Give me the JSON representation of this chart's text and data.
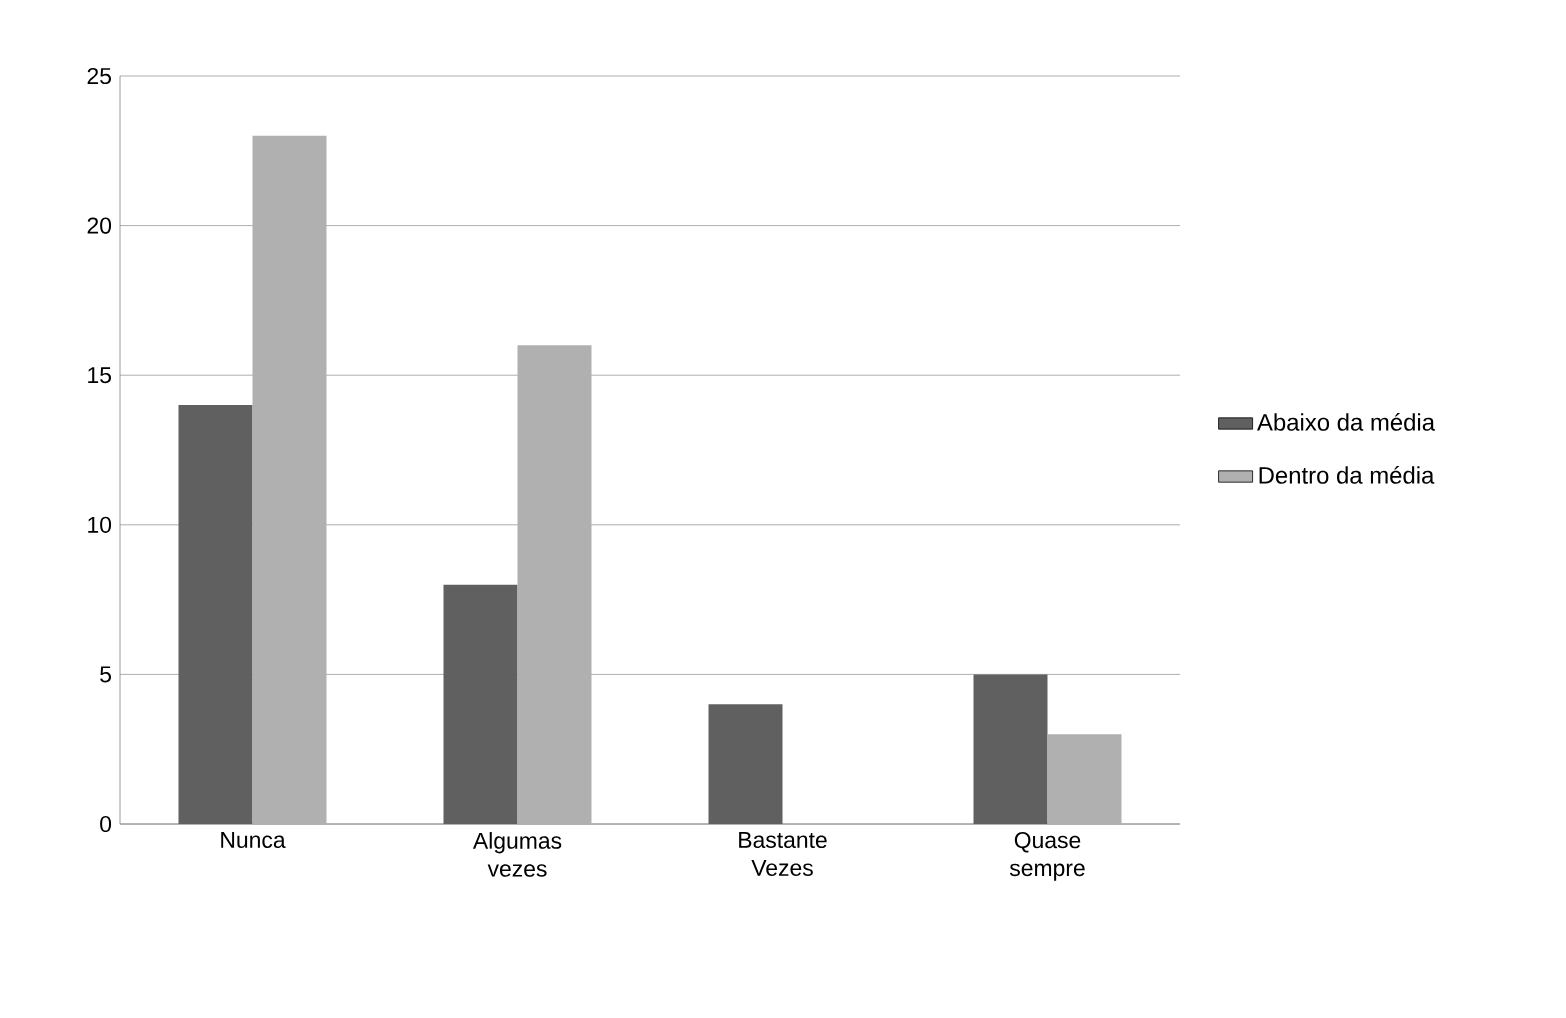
{
  "chart_data": {
    "type": "bar",
    "categories": [
      "Nunca",
      "Algumas vezes",
      "Bastante Vezes",
      "Quase sempre"
    ],
    "series": [
      {
        "name": "Abaixo da média",
        "color": "#606060",
        "values": [
          14,
          8,
          4,
          5
        ]
      },
      {
        "name": "Dentro da média",
        "color": "#b0b0b0",
        "values": [
          23,
          16,
          0,
          3
        ]
      }
    ],
    "ylim": [
      0,
      25
    ],
    "yticks": [
      0,
      5,
      10,
      15,
      20,
      25
    ],
    "grid": "y",
    "legend": "right"
  }
}
